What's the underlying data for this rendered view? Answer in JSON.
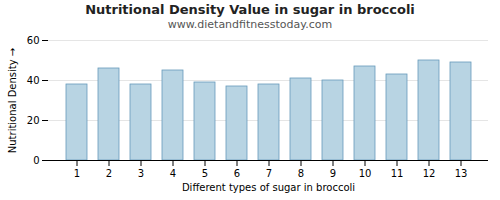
{
  "chart_data": {
    "type": "bar",
    "title": "Nutritional Density Value in sugar in broccoli",
    "subtitle": "www.dietandfitnesstoday.com",
    "xlabel": "Different types of sugar in broccoli",
    "ylabel": "Nutritional Density",
    "categories": [
      1,
      2,
      3,
      4,
      5,
      6,
      7,
      8,
      9,
      10,
      11,
      12,
      13
    ],
    "values": [
      38,
      46,
      38,
      45,
      39,
      37,
      38,
      41,
      40,
      47,
      43,
      50,
      49
    ],
    "color": "#b8d4e3",
    "ylim": [
      0,
      60
    ],
    "yticks": [
      0,
      20,
      40,
      60
    ],
    "grid": true
  }
}
